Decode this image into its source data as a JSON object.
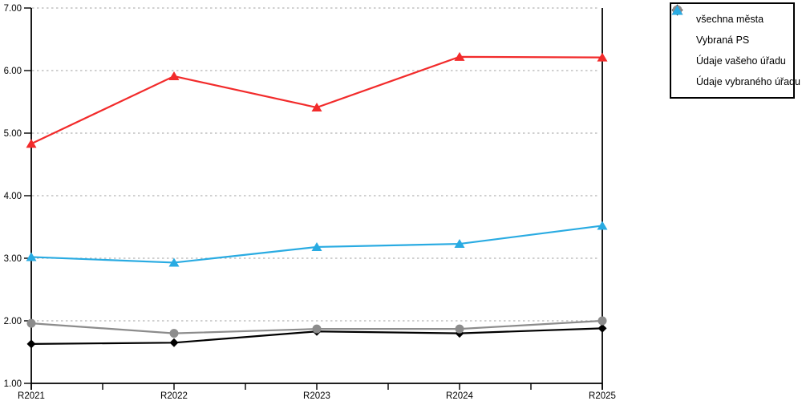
{
  "chart_data": {
    "type": "line",
    "title": "",
    "xlabel": "",
    "ylabel": "",
    "categories": [
      "R2021",
      "R2022",
      "R2023",
      "R2024",
      "R2025"
    ],
    "series": [
      {
        "name": "všechna města",
        "marker": "diamond",
        "color": "#000000",
        "values": [
          1.63,
          1.65,
          1.83,
          1.8,
          1.88
        ]
      },
      {
        "name": "Vybraná PS",
        "marker": "circle",
        "color": "#8c8c8c",
        "values": [
          1.96,
          1.8,
          1.87,
          1.87,
          2.0
        ]
      },
      {
        "name": "Údaje vašeho úřadu",
        "marker": "triangle",
        "color": "#f22b2b",
        "values": [
          4.83,
          5.91,
          5.41,
          6.22,
          6.21
        ]
      },
      {
        "name": "Údaje vybraného úřadu",
        "marker": "triangle",
        "color": "#29abe2",
        "values": [
          3.02,
          2.93,
          3.18,
          3.23,
          3.52
        ]
      }
    ],
    "ylim": [
      1,
      7
    ],
    "y_tick_labels": [
      "1.00",
      "2.00",
      "3.00",
      "4.00",
      "5.00",
      "6.00",
      "7.00"
    ],
    "grid": "horizontal-dotted",
    "grid_color": "#b5b5b5",
    "axis_color": "#000000",
    "legend_position": "top-right",
    "minor_x_ticks_between_categories": true
  }
}
